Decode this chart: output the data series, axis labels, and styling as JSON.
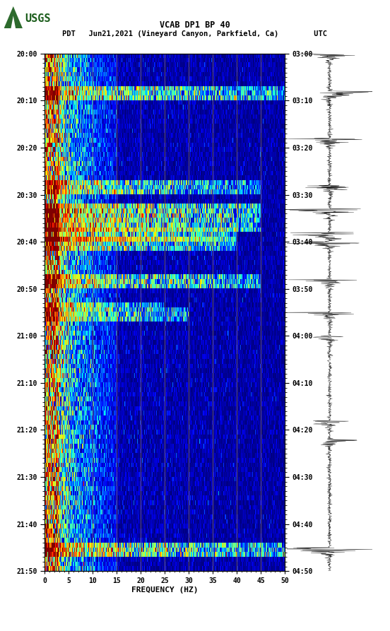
{
  "title_line1": "VCAB DP1 BP 40",
  "title_line2": "PDT   Jun21,2021 (Vineyard Canyon, Parkfield, Ca)        UTC",
  "xlabel": "FREQUENCY (HZ)",
  "freq_min": 0,
  "freq_max": 50,
  "pdt_ticks": [
    "20:00",
    "20:10",
    "20:20",
    "20:30",
    "20:40",
    "20:50",
    "21:00",
    "21:10",
    "21:20",
    "21:30",
    "21:40",
    "21:50"
  ],
  "utc_ticks": [
    "03:00",
    "03:10",
    "03:20",
    "03:30",
    "03:40",
    "03:50",
    "04:00",
    "04:10",
    "04:20",
    "04:30",
    "04:40",
    "04:50"
  ],
  "freq_ticks": [
    0,
    5,
    10,
    15,
    20,
    25,
    30,
    35,
    40,
    45,
    50
  ],
  "freq_gridlines": [
    5,
    10,
    15,
    20,
    25,
    30,
    35,
    40,
    45
  ],
  "n_time": 110,
  "n_freq": 500,
  "seed": 42,
  "gridline_color": "#8B7355",
  "seismic_events": [
    {
      "t": 8,
      "freq_extent": 50,
      "amp": 2.5,
      "thickness": 2
    },
    {
      "t": 28,
      "freq_extent": 45,
      "amp": 2.0,
      "thickness": 2
    },
    {
      "t": 33,
      "freq_extent": 45,
      "amp": 3.5,
      "thickness": 2
    },
    {
      "t": 36,
      "freq_extent": 45,
      "amp": 3.0,
      "thickness": 2
    },
    {
      "t": 38,
      "freq_extent": 40,
      "amp": 2.5,
      "thickness": 2
    },
    {
      "t": 39,
      "freq_extent": 35,
      "amp": 2.0,
      "thickness": 1
    },
    {
      "t": 40,
      "freq_extent": 40,
      "amp": 2.5,
      "thickness": 2
    },
    {
      "t": 48,
      "freq_extent": 45,
      "amp": 2.5,
      "thickness": 2
    },
    {
      "t": 53,
      "freq_extent": 25,
      "amp": 2.0,
      "thickness": 1
    },
    {
      "t": 55,
      "freq_extent": 30,
      "amp": 2.0,
      "thickness": 2
    },
    {
      "t": 105,
      "freq_extent": 50,
      "amp": 3.0,
      "thickness": 3
    }
  ],
  "wave_spikes": [
    {
      "t": 0,
      "amp": 0.6
    },
    {
      "t": 8,
      "amp": 0.9
    },
    {
      "t": 18,
      "amp": 0.7
    },
    {
      "t": 28,
      "amp": 0.5
    },
    {
      "t": 33,
      "amp": 0.8
    },
    {
      "t": 38,
      "amp": 0.85
    },
    {
      "t": 40,
      "amp": 0.7
    },
    {
      "t": 48,
      "amp": 0.6
    },
    {
      "t": 55,
      "amp": 0.5
    },
    {
      "t": 60,
      "amp": 0.4
    },
    {
      "t": 78,
      "amp": 0.45
    },
    {
      "t": 82,
      "amp": 0.5
    },
    {
      "t": 105,
      "amp": 0.9
    }
  ]
}
